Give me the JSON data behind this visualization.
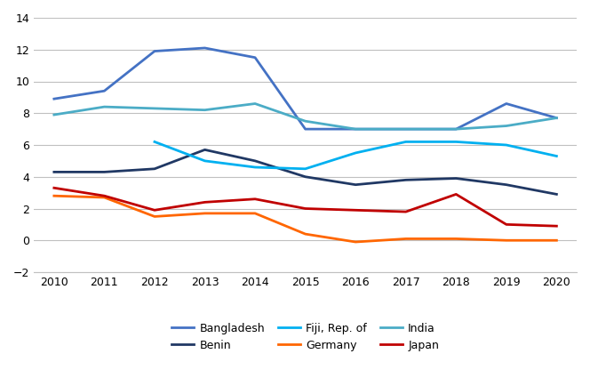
{
  "years": [
    2010,
    2011,
    2012,
    2013,
    2014,
    2015,
    2016,
    2017,
    2018,
    2019,
    2020
  ],
  "series": [
    {
      "name": "Bangladesh",
      "values": [
        8.9,
        9.4,
        11.9,
        12.1,
        11.5,
        7.0,
        7.0,
        7.0,
        7.0,
        8.6,
        7.7
      ],
      "color": "#4472C4"
    },
    {
      "name": "Benin",
      "values": [
        4.3,
        4.3,
        4.5,
        5.7,
        5.0,
        4.0,
        3.5,
        3.8,
        3.9,
        3.5,
        2.9
      ],
      "color": "#203864"
    },
    {
      "name": "Fiji, Rep. of",
      "values": [
        null,
        null,
        6.2,
        5.0,
        4.6,
        4.5,
        5.5,
        6.2,
        6.2,
        6.0,
        5.3
      ],
      "color": "#00B0F0"
    },
    {
      "name": "Germany",
      "values": [
        2.8,
        2.7,
        1.5,
        1.7,
        1.7,
        0.4,
        -0.1,
        0.1,
        0.1,
        0.0,
        0.0
      ],
      "color": "#FF6600"
    },
    {
      "name": "India",
      "values": [
        7.9,
        8.4,
        8.3,
        8.2,
        8.6,
        7.5,
        7.0,
        7.0,
        7.0,
        7.2,
        7.7
      ],
      "color": "#4BACC6"
    },
    {
      "name": "Japan",
      "values": [
        3.3,
        2.8,
        1.9,
        2.4,
        2.6,
        2.0,
        1.9,
        1.8,
        2.9,
        1.0,
        0.9
      ],
      "color": "#C00000"
    }
  ],
  "ylim": [
    -2,
    14
  ],
  "yticks": [
    -2,
    0,
    2,
    4,
    6,
    8,
    10,
    12,
    14
  ],
  "background_color": "#FFFFFF",
  "grid_color": "#C0C0C0",
  "legend_order": [
    "Bangladesh",
    "Benin",
    "Fiji, Rep. of",
    "Germany",
    "India",
    "Japan"
  ]
}
